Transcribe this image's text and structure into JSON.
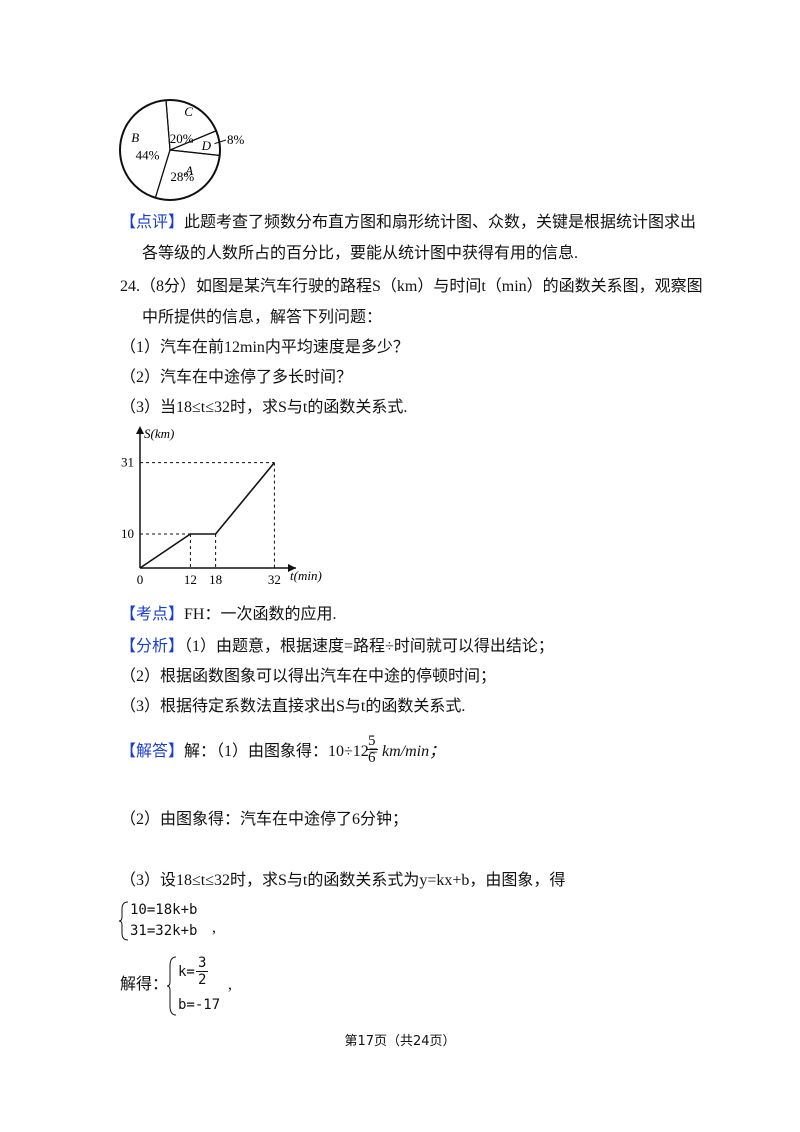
{
  "pie": {
    "slices": [
      {
        "letter": "C",
        "label": "20%",
        "value": 20
      },
      {
        "letter": "D",
        "label": "8%",
        "value": 8
      },
      {
        "letter": "A",
        "label": "28%",
        "value": 28
      },
      {
        "letter": "B",
        "label": "44%",
        "value": 44
      }
    ]
  },
  "review": {
    "tag": "【点评】",
    "line1": "此题考查了频数分布直方图和扇形统计图、众数，关键是根据统计图求出",
    "line2": "各等级的人数所占的百分比，要能从统计图中获得有用的信息."
  },
  "question": {
    "lines": [
      "24.（8分）如图是某汽车行驶的路程S（km）与时间t（min）的函数关系图，观察图",
      "中所提供的信息，解答下列问题：",
      "（1）汽车在前12min内平均速度是多少？",
      "（2）汽车在中途停了多长时间？",
      "（3）当18≤t≤32时，求S与t的函数关系式."
    ]
  },
  "graph": {
    "y_label": "S(km)",
    "x_label": "t(min)",
    "xticks": [
      0,
      12,
      18,
      32
    ],
    "yticks": [
      10,
      31
    ],
    "t": [
      0,
      12,
      18,
      32
    ],
    "s": [
      0,
      10,
      10,
      31
    ]
  },
  "key_point": {
    "tag": "【考点】",
    "text": "FH：一次函数的应用."
  },
  "analysis": {
    "tag": "【分析】",
    "lines": [
      "（1）由题意，根据速度=路程÷时间就可以得出结论；",
      "（2）根据函数图象可以得出汽车在中途的停顿时间；",
      "（3）根据待定系数法直接求出S与t的函数关系式."
    ]
  },
  "answer": {
    "tag": "【解答】",
    "part1": "解：（1）由图象得：10÷12=",
    "frac_num": "5",
    "frac_den": "6",
    "unit": "km/min；",
    "part2": "（2）由图象得：汽车在中途停了6分钟；",
    "part3": "（3）设18≤t≤32时，求S与t的函数关系式为y=kx+b，由图象，得",
    "system": [
      "10=18k+b",
      "31=32k+b"
    ],
    "system_end": ",",
    "solve_prefix": "解得：",
    "k_lhs": "k=",
    "k_num": "3",
    "k_den": "2",
    "b_line": "b=-17",
    "solve_end": ","
  },
  "footer": "第17页（共24页）"
}
